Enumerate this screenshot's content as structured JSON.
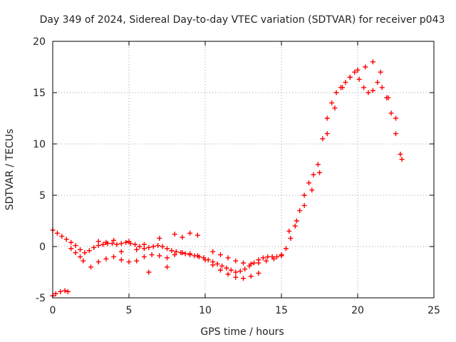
{
  "chart_data": {
    "type": "scatter",
    "title": "Day 349 of 2024, Sidereal Day-to-day VTEC variation (SDTVAR) for receiver p043",
    "xlabel": "GPS time / hours",
    "ylabel": "SDTVAR / TECUs",
    "xlim": [
      0,
      25
    ],
    "ylim": [
      -5,
      20
    ],
    "xticks": [
      0,
      5,
      10,
      15,
      20,
      25
    ],
    "yticks": [
      -5,
      0,
      5,
      10,
      15,
      20
    ],
    "grid": true,
    "marker": "plus",
    "color": "#ff0000",
    "series": [
      {
        "name": "main-trace",
        "x": [
          0.0,
          0.3,
          0.6,
          0.9,
          1.2,
          1.5,
          1.8,
          2.1,
          2.4,
          2.7,
          3.0,
          3.3,
          3.6,
          3.9,
          4.2,
          4.5,
          4.8,
          5.1,
          5.4,
          5.7,
          6.0,
          6.3,
          6.6,
          6.9,
          7.2,
          7.5,
          7.8,
          8.1,
          8.4,
          8.7,
          9.0,
          9.3,
          9.6,
          9.9,
          10.2,
          10.5,
          10.8,
          11.1,
          11.4,
          11.7,
          12.0,
          12.3,
          12.6,
          12.9,
          13.2,
          13.5,
          13.8,
          14.1,
          14.4,
          14.7,
          15.0,
          15.3,
          15.6,
          15.9,
          16.2,
          16.5,
          16.8,
          17.1,
          17.4,
          17.7,
          18.0,
          18.3,
          18.6,
          18.9,
          19.2,
          19.5,
          19.8,
          20.1,
          20.4,
          20.7,
          21.0,
          21.3,
          21.6,
          21.9,
          22.2,
          22.5,
          22.8
        ],
        "y": [
          1.6,
          1.3,
          1.0,
          0.7,
          0.4,
          0.1,
          -0.3,
          -0.6,
          -0.4,
          -0.1,
          0.1,
          0.2,
          0.3,
          0.3,
          0.2,
          0.3,
          0.4,
          0.3,
          0.2,
          0.0,
          -0.2,
          -0.1,
          0.0,
          0.1,
          0.0,
          -0.2,
          -0.4,
          -0.5,
          -0.6,
          -0.7,
          -0.8,
          -0.9,
          -1.0,
          -1.1,
          -1.3,
          -1.5,
          -1.7,
          -1.9,
          -2.1,
          -2.3,
          -2.5,
          -2.4,
          -2.2,
          -1.9,
          -1.6,
          -1.3,
          -1.1,
          -1.0,
          -1.0,
          -1.0,
          -0.8,
          -0.2,
          0.8,
          2.0,
          3.5,
          5.0,
          6.2,
          7.0,
          8.0,
          10.5,
          12.5,
          14.0,
          15.0,
          15.5,
          16.0,
          16.5,
          17.0,
          16.3,
          15.5,
          15.0,
          15.2,
          16.0,
          15.5,
          14.5,
          13.0,
          11.0,
          9.0
        ]
      },
      {
        "name": "upper-trace",
        "x": [
          10.5,
          11.0,
          11.5,
          12.0,
          12.5,
          13.0,
          13.5,
          14.0,
          14.5,
          15.0,
          15.5,
          16.0,
          16.5,
          17.0,
          17.5,
          18.0,
          18.5,
          19.0,
          19.5,
          20.0,
          20.5,
          21.0,
          21.5,
          22.0,
          22.5,
          22.9
        ],
        "y": [
          -0.5,
          -0.8,
          -1.1,
          -1.4,
          -1.6,
          -1.7,
          -1.6,
          -1.4,
          -1.2,
          -0.9,
          1.5,
          2.5,
          4.0,
          5.5,
          7.2,
          11.0,
          13.5,
          15.5,
          16.5,
          17.2,
          17.5,
          18.0,
          17.0,
          14.5,
          12.5,
          8.5
        ]
      },
      {
        "name": "lower-trace",
        "x": [
          2.5,
          3.0,
          3.5,
          4.0,
          4.5,
          5.0,
          5.5,
          6.0,
          6.5,
          7.0,
          7.5,
          8.0,
          8.5,
          9.0,
          9.5,
          10.0,
          10.5,
          11.0,
          11.5,
          12.0,
          12.5,
          13.0,
          13.5
        ],
        "y": [
          -2.0,
          -1.5,
          -1.2,
          -1.0,
          -1.3,
          -1.5,
          -1.4,
          -1.0,
          -0.8,
          -0.9,
          -1.1,
          -0.8,
          -0.6,
          -0.7,
          -0.9,
          -1.3,
          -1.8,
          -2.3,
          -2.7,
          -3.0,
          -3.1,
          -2.9,
          -2.6
        ]
      },
      {
        "name": "early-band",
        "x": [
          0.0,
          0.2,
          0.5,
          0.8,
          1.0,
          1.2,
          1.5,
          1.8,
          2.0
        ],
        "y": [
          -4.8,
          -4.6,
          -4.4,
          -4.3,
          -4.4,
          -0.2,
          -0.6,
          -1.0,
          -1.4
        ]
      },
      {
        "name": "mid-band",
        "x": [
          3.0,
          3.5,
          4.0,
          4.5,
          5.0,
          5.5,
          6.0,
          6.3,
          7.0,
          7.5,
          8.0,
          8.5,
          9.0,
          9.5
        ],
        "y": [
          0.5,
          0.4,
          0.6,
          -0.5,
          0.5,
          -0.3,
          0.2,
          -2.5,
          0.8,
          -2.0,
          1.2,
          0.9,
          1.3,
          1.1
        ]
      }
    ]
  }
}
